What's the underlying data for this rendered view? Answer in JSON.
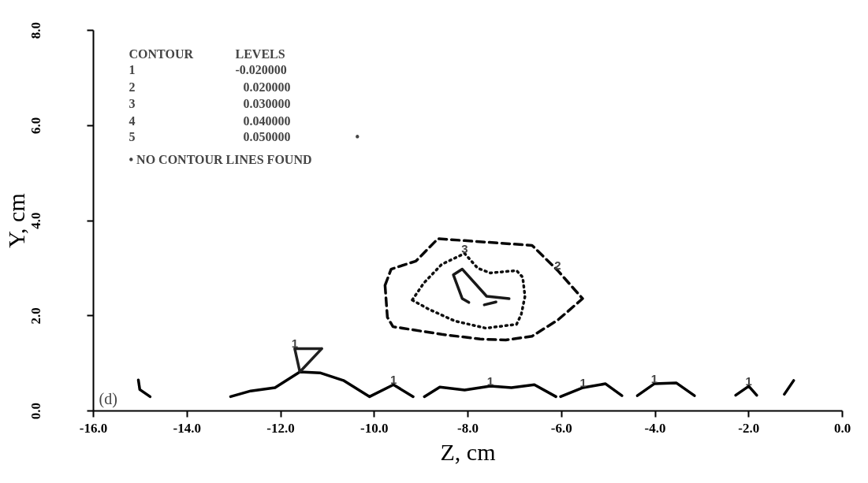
{
  "chart_data": {
    "type": "line",
    "xlabel": "Z, cm",
    "ylabel": "Y, cm",
    "xlim": [
      -16,
      0
    ],
    "ylim": [
      0,
      8
    ],
    "xticks": [
      {
        "value": -16,
        "label": "-16.0"
      },
      {
        "value": -14,
        "label": "-14.0"
      },
      {
        "value": -12,
        "label": "-12.0"
      },
      {
        "value": -10,
        "label": "-10.0"
      },
      {
        "value": -8,
        "label": "-8.0"
      },
      {
        "value": -6,
        "label": "-6.0"
      },
      {
        "value": -4,
        "label": "-4.0"
      },
      {
        "value": -2,
        "label": "-2.0"
      },
      {
        "value": 0,
        "label": "0.0"
      }
    ],
    "yticks": [
      {
        "value": 0,
        "label": "0.0"
      },
      {
        "value": 2,
        "label": "2.0"
      },
      {
        "value": 4,
        "label": "4.0"
      },
      {
        "value": 6,
        "label": "6.0"
      },
      {
        "value": 8,
        "label": "8.0"
      }
    ],
    "grid": false,
    "series": [
      {
        "color": "#000000",
        "line_style": "solid",
        "x": [
          -15.04,
          -15.01,
          -14.79,
          null,
          -13.07,
          -12.64,
          -12.12,
          -11.59,
          -11.16,
          -10.66,
          -10.1,
          -9.59,
          -9.17,
          null,
          -8.93,
          -8.6,
          -8.07,
          -7.52,
          -7.07,
          -6.58,
          -6.12,
          null,
          -6.02,
          -5.54,
          -5.06,
          -4.71,
          null,
          -4.38,
          -4.02,
          -3.55,
          -3.16,
          null,
          -2.28,
          -2.0,
          -1.83,
          null,
          -1.24,
          -1.04
        ],
        "values": [
          0.65,
          0.45,
          0.3,
          null,
          0.3,
          0.42,
          0.49,
          0.82,
          0.8,
          0.64,
          0.3,
          0.55,
          0.3,
          null,
          0.3,
          0.5,
          0.44,
          0.52,
          0.49,
          0.55,
          0.3,
          null,
          0.3,
          0.49,
          0.57,
          0.32,
          null,
          0.32,
          0.57,
          0.59,
          0.32,
          null,
          0.33,
          0.52,
          0.33,
          null,
          0.35,
          0.64
        ]
      },
      {
        "color": "#080808",
        "line_style": "dashed",
        "x": [
          -9.77,
          -9.64,
          -9.11,
          -8.64,
          -8.07,
          -6.63,
          -6.08,
          -5.55,
          null,
          -9.77,
          -9.72,
          -9.6,
          -8.56,
          -7.74,
          -7.19,
          -6.63,
          -6.08,
          -5.55
        ],
        "values": [
          2.64,
          2.98,
          3.15,
          3.62,
          3.58,
          3.48,
          2.95,
          2.36,
          null,
          2.64,
          1.97,
          1.77,
          1.61,
          1.51,
          1.49,
          1.57,
          1.91,
          2.36
        ]
      },
      {
        "color": "#101010",
        "line_style": "dotted",
        "x": [
          -9.19,
          -8.94,
          -8.56,
          -8.07,
          -7.79,
          -7.52,
          -6.96,
          -6.83,
          -6.78,
          null,
          -9.19,
          -8.84,
          -8.28,
          -7.62,
          -6.96,
          -6.86,
          -6.78
        ],
        "values": [
          2.33,
          2.69,
          3.08,
          3.31,
          3.0,
          2.9,
          2.95,
          2.81,
          2.41,
          null,
          2.33,
          2.14,
          1.89,
          1.74,
          1.82,
          2.03,
          2.41
        ]
      },
      {
        "color": "#181818",
        "line_style": "solid",
        "x": [
          -8.31,
          -8.12,
          -7.6,
          -7.12,
          null,
          -8.31,
          -8.12,
          -7.98,
          null,
          -7.65,
          -7.4
        ],
        "values": [
          2.86,
          2.98,
          2.41,
          2.36,
          null,
          2.86,
          2.36,
          2.28,
          null,
          2.23,
          2.29
        ]
      },
      {
        "color": "#202020",
        "line_style": "solid",
        "x": [
          -11.7,
          -11.12,
          null,
          -11.7,
          -11.59,
          -11.12
        ],
        "values": [
          1.31,
          1.31,
          null,
          1.31,
          0.82,
          1.31
        ]
      }
    ],
    "annotations": [
      "CONTOUR  LEVELS",
      "1  -0.020000",
      "2  0.020000",
      "3  0.030000",
      "4  0.040000",
      "5  0.050000  •",
      "•  NO CONTOUR LINES FOUND",
      "(d)",
      {
        "text": "2",
        "x": -6.08,
        "y": 2.95
      },
      {
        "text": "3",
        "x": -8.07,
        "y": 3.31
      },
      {
        "text": "1",
        "x": -11.7,
        "y": 1.31
      },
      {
        "text": "1",
        "x": -9.59,
        "y": 0.55
      },
      {
        "text": "1",
        "x": -7.52,
        "y": 0.52
      },
      {
        "text": "1",
        "x": -5.54,
        "y": 0.49
      },
      {
        "text": "1",
        "x": -4.02,
        "y": 0.57
      },
      {
        "text": "1",
        "x": -2.0,
        "y": 0.52
      }
    ]
  }
}
